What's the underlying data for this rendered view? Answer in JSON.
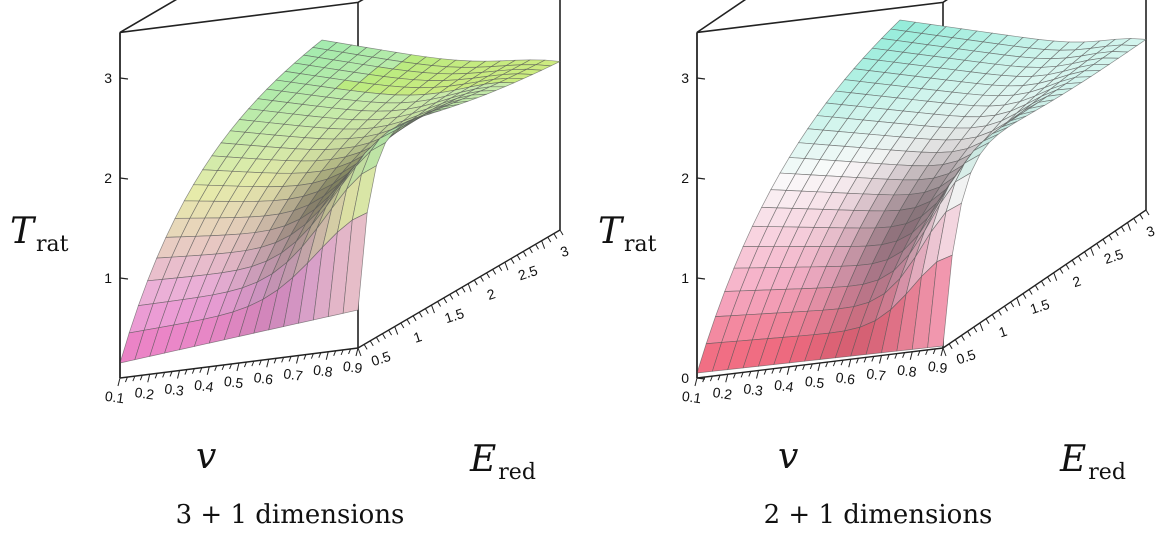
{
  "chart_data": [
    {
      "type": "surface3d",
      "caption": "3 + 1 dimensions",
      "zlabel_main": "T",
      "zlabel_sub": "rat",
      "xlabel_main": "v",
      "ylabel_main": "E",
      "ylabel_sub": "red",
      "xlim": [
        0.1,
        0.9
      ],
      "ylim": [
        0.25,
        3
      ],
      "zlim": [
        0,
        3.2
      ],
      "x_ticks": [
        "0.1",
        "0.2",
        "0.3",
        "0.4",
        "0.5",
        "0.6",
        "0.7",
        "0.8",
        "0.9"
      ],
      "y_ticks": [
        "0.5",
        "1",
        "1.5",
        "2",
        "2.5",
        "3"
      ],
      "z_ticks": [
        "1",
        "2",
        "3"
      ],
      "shape": "monotone",
      "surface": {
        "v": [
          0.1,
          0.9
        ],
        "E": [
          0.25,
          3
        ],
        "corners": {
          "v_low_E_low": 0.15,
          "v_high_E_low": 0.38,
          "v_low_E_high": 2.2,
          "v_high_E_high": 1.5
        },
        "peak": {
          "v": 0.85,
          "E": 0.3,
          "T": 3.35
        }
      }
    },
    {
      "type": "surface3d",
      "caption": "2 + 1 dimensions",
      "zlabel_main": "T",
      "zlabel_sub": "rat",
      "xlabel_main": "v",
      "ylabel_main": "E",
      "ylabel_sub": "red",
      "xlim": [
        0.1,
        0.9
      ],
      "ylim": [
        0.25,
        3
      ],
      "zlim": [
        0,
        3.2
      ],
      "x_ticks": [
        "0.1",
        "0.2",
        "0.3",
        "0.4",
        "0.5",
        "0.6",
        "0.7",
        "0.8",
        "0.9"
      ],
      "y_ticks": [
        "0.5",
        "1",
        "1.5",
        "2",
        "2.5",
        "3"
      ],
      "z_ticks": [
        "0",
        "1",
        "2",
        "3"
      ],
      "shape": "ridge",
      "surface": {
        "v": [
          0.1,
          0.9
        ],
        "E": [
          0.25,
          3
        ],
        "corners": {
          "v_low_E_low": 0.05,
          "v_high_E_low": 0.02,
          "v_low_E_high": 2.2,
          "v_high_E_high": 1.55
        },
        "peak": {
          "v": 0.85,
          "E": 0.35,
          "T": 3.3
        }
      }
    }
  ]
}
